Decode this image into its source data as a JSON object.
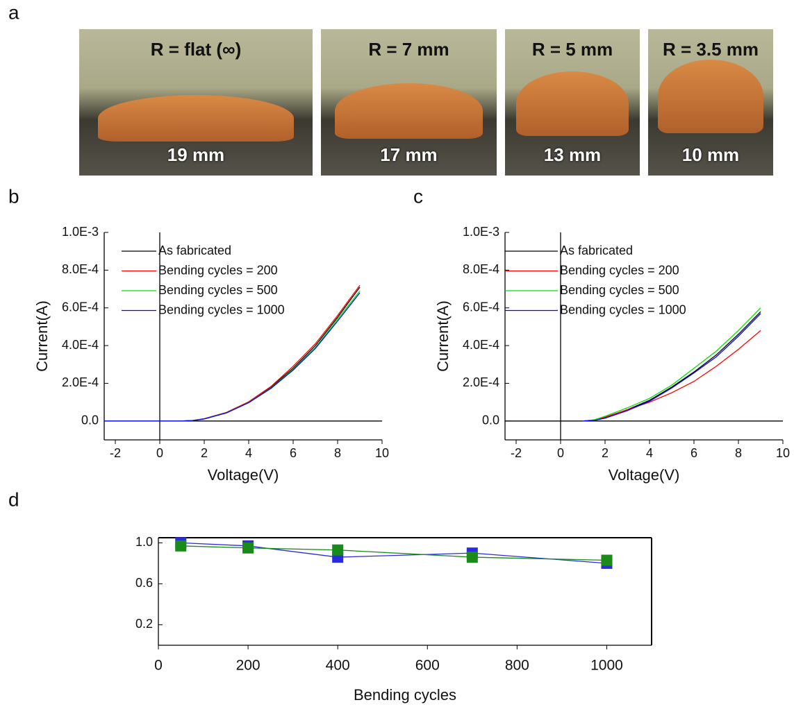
{
  "photo_panel": {
    "label": "a",
    "photos": [
      {
        "radius": "R = flat (∞)",
        "length": "19 mm"
      },
      {
        "radius": "R = 7 mm",
        "length": "17 mm"
      },
      {
        "radius": "R = 5 mm",
        "length": "13 mm"
      },
      {
        "radius": "R = 3.5 mm",
        "length": "10 mm"
      }
    ]
  },
  "chart_data": [
    {
      "panel": "b",
      "type": "line",
      "x_label": "Voltage(V)",
      "y_label": "Current(A)",
      "zero_lines": true,
      "x": [
        -2.5,
        0,
        1,
        1.5,
        2,
        3,
        4,
        5,
        6,
        7,
        8,
        9
      ],
      "series": [
        {
          "name": "As fabricated",
          "color": "#000000",
          "values": [
            0,
            0,
            0,
            3e-06,
            1.2e-05,
            4.5e-05,
            0.0001,
            0.00018,
            0.00028,
            0.0004,
            0.00055,
            0.00071
          ]
        },
        {
          "name": "Bending cycles = 200",
          "color": "#ff0000",
          "values": [
            0,
            0,
            0,
            3e-06,
            1.2e-05,
            4.6e-05,
            0.000102,
            0.000183,
            0.00029,
            0.00041,
            0.00056,
            0.00072
          ]
        },
        {
          "name": "Bending cycles = 500",
          "color": "#00e000",
          "values": [
            0,
            0,
            0,
            3e-06,
            1.1e-05,
            4.4e-05,
            9.8e-05,
            0.000175,
            0.000275,
            0.00039,
            0.00054,
            0.00069
          ]
        },
        {
          "name": "Bending cycles = 1000",
          "color": "#0000ff",
          "values": [
            0,
            0,
            0,
            3e-06,
            1.1e-05,
            4.3e-05,
            9.7e-05,
            0.000173,
            0.00027,
            0.000385,
            0.00053,
            0.00068
          ]
        }
      ],
      "xlim": [
        -2.5,
        10
      ],
      "xticks": [
        -2,
        0,
        2,
        4,
        6,
        8,
        10
      ],
      "ylim": [
        -0.0001,
        0.001
      ],
      "yticks": [
        {
          "value": 0,
          "label": "0.0"
        },
        {
          "value": 0.0002,
          "label": "2.0E-4"
        },
        {
          "value": 0.0004,
          "label": "4.0E-4"
        },
        {
          "value": 0.0006,
          "label": "6.0E-4"
        },
        {
          "value": 0.0008,
          "label": "8.0E-4"
        },
        {
          "value": 0.001,
          "label": "1.0E-3"
        }
      ]
    },
    {
      "panel": "c",
      "type": "line",
      "x_label": "Voltage(V)",
      "y_label": "Current(A)",
      "zero_lines": true,
      "x": [
        1,
        1.5,
        2,
        3,
        4,
        5,
        6,
        7,
        8,
        9
      ],
      "series": [
        {
          "name": "As fabricated",
          "color": "#000000",
          "values": [
            0,
            5e-06,
            2e-05,
            6e-05,
            0.00011,
            0.00018,
            0.00026,
            0.00035,
            0.00046,
            0.00058
          ]
        },
        {
          "name": "Bending cycles = 200",
          "color": "#ff0000",
          "values": [
            0,
            5e-06,
            2e-05,
            6e-05,
            0.0001,
            0.00015,
            0.00021,
            0.00029,
            0.00038,
            0.00048
          ]
        },
        {
          "name": "Bending cycles = 500",
          "color": "#00e000",
          "values": [
            0,
            6e-06,
            2.5e-05,
            7e-05,
            0.00012,
            0.00019,
            0.00028,
            0.00037,
            0.00048,
            0.0006
          ]
        },
        {
          "name": "Bending cycles = 1000",
          "color": "#0000ff",
          "values": [
            0,
            3e-06,
            1.5e-05,
            5.5e-05,
            0.000105,
            0.000175,
            0.000255,
            0.00034,
            0.00045,
            0.00057
          ]
        }
      ],
      "xlim": [
        -2.5,
        10
      ],
      "xticks": [
        -2,
        0,
        2,
        4,
        6,
        8,
        10
      ],
      "ylim": [
        -0.0001,
        0.001
      ],
      "yticks": [
        {
          "value": 0,
          "label": "0.0"
        },
        {
          "value": 0.0002,
          "label": "2.0E-4"
        },
        {
          "value": 0.0004,
          "label": "4.0E-4"
        },
        {
          "value": 0.0006,
          "label": "6.0E-4"
        },
        {
          "value": 0.0008,
          "label": "8.0E-4"
        },
        {
          "value": 0.001,
          "label": "1.0E-3"
        }
      ]
    },
    {
      "panel": "d",
      "type": "line",
      "marker": "square",
      "x_label": "Bending cycles",
      "frame": true,
      "x": [
        50,
        200,
        400,
        700,
        1000
      ],
      "series": [
        {
          "color": "#2a2ae0",
          "values": [
            1.0,
            0.97,
            0.86,
            0.9,
            0.8
          ]
        },
        {
          "color": "#1a8a1a",
          "values": [
            0.97,
            0.95,
            0.93,
            0.86,
            0.83
          ]
        }
      ],
      "xlim": [
        0,
        1100
      ],
      "xticks": [
        0,
        200,
        400,
        600,
        800,
        1000
      ],
      "ylim": [
        0,
        1.05
      ],
      "yticks": [
        0.2,
        0.6,
        {
          "value": 1,
          "label": "1.0"
        }
      ]
    }
  ]
}
